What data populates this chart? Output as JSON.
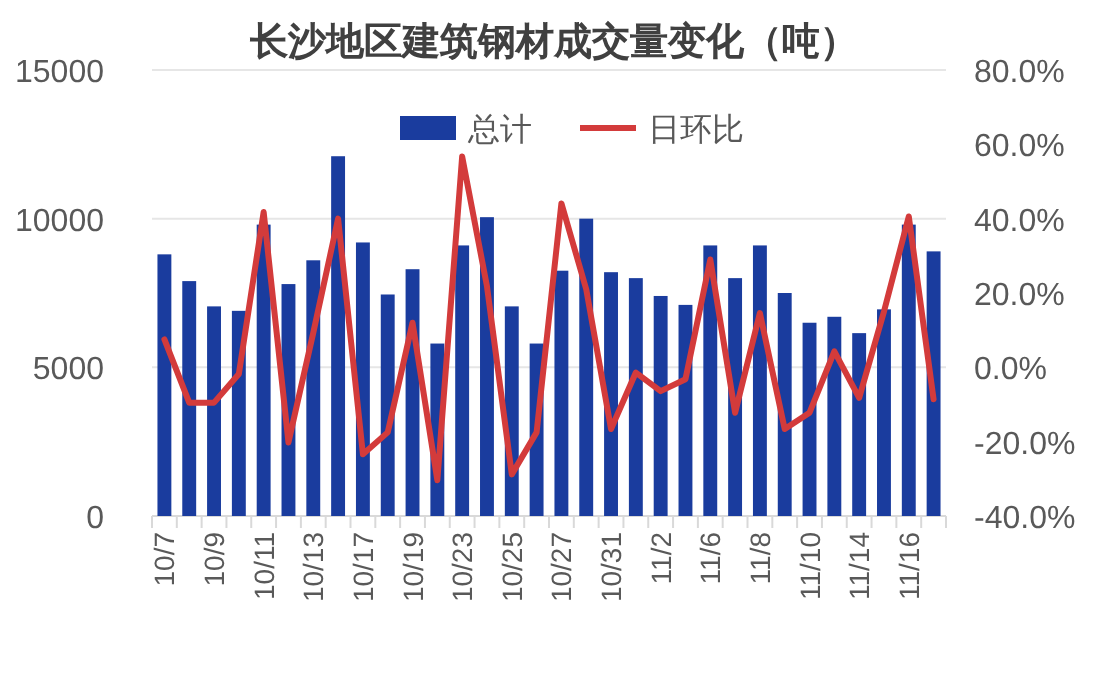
{
  "chart_data": {
    "type": "bar",
    "title": "长沙地区建筑钢材成交量变化（吨）",
    "categories": [
      "10/7",
      null,
      "10/9",
      null,
      "10/11",
      null,
      "10/13",
      null,
      "10/17",
      null,
      "10/19",
      null,
      "10/23",
      null,
      "10/25",
      null,
      "10/27",
      null,
      "10/31",
      null,
      "11/2",
      null,
      "11/6",
      null,
      "11/8",
      null,
      "11/10",
      null,
      "11/14",
      null,
      "11/16",
      null
    ],
    "series": [
      {
        "name": "总计",
        "color": "#1a3c9e",
        "values": [
          8800,
          7900,
          7050,
          6900,
          9800,
          7800,
          8600,
          12100,
          9200,
          7450,
          8300,
          5800,
          9100,
          10050,
          7050,
          5800,
          8250,
          10000,
          8200,
          8000,
          7400,
          7100,
          9100,
          8000,
          9100,
          7500,
          6500,
          6700,
          6150,
          6950,
          9800,
          8900
        ]
      },
      {
        "name": "日环比",
        "type": "line",
        "axis": "y2",
        "color": "#d33b3b",
        "values": [
          7.5,
          -9.5,
          -9.5,
          -1.8,
          41.8,
          -20.2,
          9.3,
          40,
          -23.4,
          -17.5,
          12,
          -30.4,
          56.7,
          21.8,
          -28.8,
          -17.5,
          44.1,
          21,
          -16.6,
          -1.4,
          -6.4,
          -3.2,
          29,
          -12.2,
          14.6,
          -16.6,
          -12.2,
          4.3,
          -8.2,
          15,
          40.6,
          -8.6
        ]
      }
    ],
    "ylim": [
      0,
      15000
    ],
    "yticks": [
      0,
      5000,
      10000,
      15000
    ],
    "y2lim": [
      -40,
      80
    ],
    "y2ticks": [
      {
        "value": -40,
        "label": "-40.0%"
      },
      {
        "value": -20,
        "label": "-20.0%"
      },
      {
        "value": 0,
        "label": "0.0%"
      },
      {
        "value": 20,
        "label": "20.0%"
      },
      {
        "value": 40,
        "label": "40.0%"
      },
      {
        "value": 60,
        "label": "60.0%"
      },
      {
        "value": 80,
        "label": "80.0%"
      }
    ],
    "grid": "y",
    "legend": "top"
  }
}
